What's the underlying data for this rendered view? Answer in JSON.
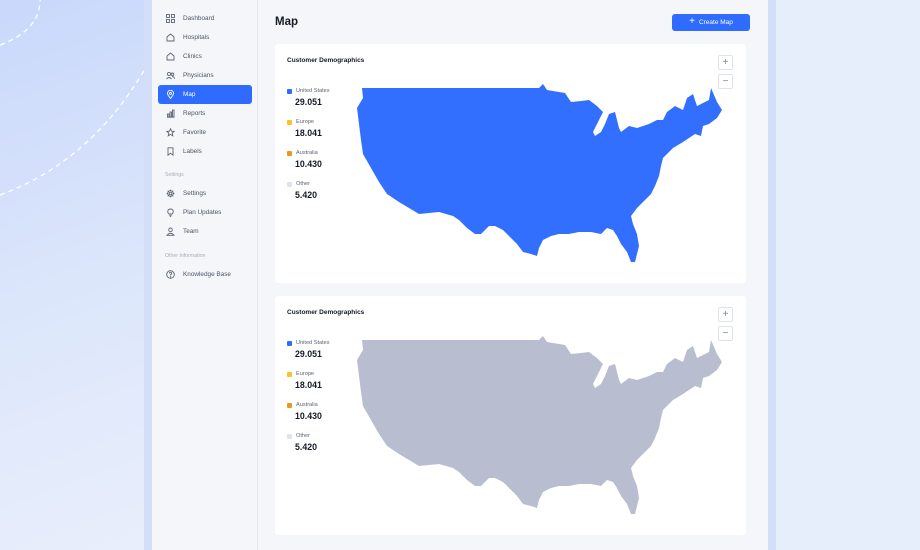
{
  "sidebar": {
    "items": [
      {
        "label": "Dashboard",
        "icon": "grid-icon"
      },
      {
        "label": "Hospitals",
        "icon": "home-icon"
      },
      {
        "label": "Clinics",
        "icon": "home-icon"
      },
      {
        "label": "Physicians",
        "icon": "users-icon"
      },
      {
        "label": "Map",
        "icon": "map-pin-icon",
        "active": true
      },
      {
        "label": "Reports",
        "icon": "bar-chart-icon"
      },
      {
        "label": "Favorite",
        "icon": "star-icon"
      },
      {
        "label": "Labels",
        "icon": "bookmark-icon"
      }
    ],
    "settings_label": "Settings",
    "settings_items": [
      {
        "label": "Settings",
        "icon": "gear-icon"
      },
      {
        "label": "Plan Updates",
        "icon": "lightbulb-icon"
      },
      {
        "label": "Team",
        "icon": "user-icon"
      }
    ],
    "other_label": "Other Information",
    "other_items": [
      {
        "label": "Knowledge Base",
        "icon": "help-circle-icon"
      }
    ]
  },
  "header": {
    "title": "Map",
    "create_button": "Create Map"
  },
  "cards": [
    {
      "title": "Customer Demographics",
      "map_color": "#336fff",
      "legend": [
        {
          "label": "United States",
          "value": "29.051",
          "color": "#2f6bff"
        },
        {
          "label": "Europe",
          "value": "18.041",
          "color": "#f7c325"
        },
        {
          "label": "Australia",
          "value": "10.430",
          "color": "#e79a1c"
        },
        {
          "label": "Other",
          "value": "5.420",
          "color": "#dfe2e8"
        }
      ],
      "zoom_in": "+",
      "zoom_out": "−"
    },
    {
      "title": "Customer Demographics",
      "map_color": "#b9bdd0",
      "legend": [
        {
          "label": "United States",
          "value": "29.051",
          "color": "#2f6bff"
        },
        {
          "label": "Europe",
          "value": "18.041",
          "color": "#f7c325"
        },
        {
          "label": "Australia",
          "value": "10.430",
          "color": "#e79a1c"
        },
        {
          "label": "Other",
          "value": "5.420",
          "color": "#dfe2e8"
        }
      ],
      "zoom_in": "+",
      "zoom_out": "−"
    }
  ]
}
